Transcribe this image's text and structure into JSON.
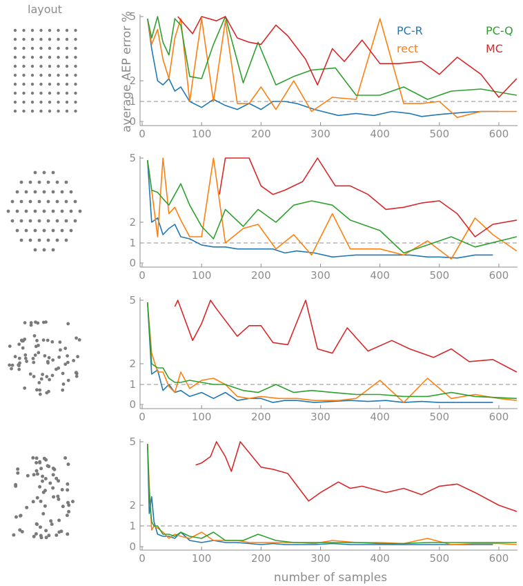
{
  "figure": {
    "layout_title": "layout",
    "ylabel": "average AEP error %",
    "xlabel": "number of samples"
  },
  "colors": {
    "PC-R": "#1f77b4",
    "rect": "#ff7f0e",
    "PC-Q": "#2ca02c",
    "MC": "#d62728",
    "reference": "#8c8c8c",
    "layout_dots": "#7a7a7a"
  },
  "legend": [
    {
      "name": "PC-R",
      "color": "#1f77b4"
    },
    {
      "name": "rect",
      "color": "#ff7f0e"
    },
    {
      "name": "PC-Q",
      "color": "#2ca02c"
    },
    {
      "name": "MC",
      "color": "#d62728"
    }
  ],
  "layouts": [
    "grid",
    "circular",
    "circular-irregular",
    "irregular"
  ],
  "chart_data": [
    {
      "type": "line",
      "x_ticks": [
        0,
        100,
        200,
        300,
        400,
        500,
        600
      ],
      "y_ticks": [
        0,
        1,
        2,
        5
      ],
      "xlim": [
        -10,
        630
      ],
      "ylim": [
        -0.2,
        5
      ],
      "reference_line": 1,
      "series": [
        {
          "name": "PC-R",
          "x": [
            9,
            16,
            26,
            35,
            45,
            55,
            65,
            80,
            100,
            120,
            140,
            160,
            180,
            200,
            220,
            240,
            260,
            290,
            330,
            360,
            390,
            420,
            450,
            470,
            500,
            540,
            570,
            600
          ],
          "y": [
            4.9,
            3.5,
            2.0,
            1.8,
            2.1,
            1.5,
            1.7,
            1.0,
            0.7,
            1.1,
            0.8,
            0.6,
            0.9,
            0.6,
            1.0,
            1.0,
            0.9,
            0.6,
            0.3,
            0.4,
            0.3,
            0.5,
            0.4,
            0.25,
            0.35,
            0.45,
            0.5,
            0.5
          ]
        },
        {
          "name": "rect",
          "x": [
            9,
            16,
            26,
            35,
            45,
            55,
            65,
            80,
            100,
            120,
            140,
            160,
            180,
            200,
            225,
            255,
            285,
            320,
            360,
            400,
            440,
            470,
            500,
            530,
            570,
            630
          ],
          "y": [
            4.9,
            3.7,
            4.4,
            3.0,
            2.1,
            4.0,
            4.9,
            1.0,
            4.9,
            1.0,
            4.8,
            0.9,
            0.9,
            1.7,
            0.6,
            2.0,
            0.5,
            1.2,
            1.1,
            4.9,
            0.9,
            0.9,
            1.0,
            0.2,
            0.5,
            0.5
          ]
        },
        {
          "name": "PC-Q",
          "x": [
            9,
            16,
            26,
            35,
            45,
            55,
            65,
            80,
            100,
            120,
            140,
            170,
            195,
            225,
            255,
            285,
            325,
            360,
            400,
            440,
            480,
            520,
            570,
            630
          ],
          "y": [
            4.9,
            4.0,
            5.0,
            3.8,
            3.2,
            4.9,
            4.6,
            2.2,
            2.1,
            3.7,
            5.0,
            1.9,
            3.8,
            1.8,
            2.2,
            2.5,
            2.6,
            1.3,
            1.3,
            1.7,
            1.1,
            1.5,
            1.6,
            1.3
          ]
        },
        {
          "name": "MC",
          "x": [
            60,
            85,
            100,
            125,
            140,
            160,
            180,
            200,
            225,
            245,
            275,
            295,
            320,
            340,
            370,
            400,
            430,
            470,
            500,
            530,
            570,
            600,
            630
          ],
          "y": [
            5.0,
            4.2,
            5.0,
            4.8,
            5.0,
            4.0,
            3.8,
            3.7,
            4.6,
            4.1,
            3.0,
            1.8,
            3.5,
            2.9,
            3.9,
            2.8,
            2.8,
            2.9,
            2.3,
            3.1,
            2.3,
            1.2,
            2.1
          ]
        }
      ]
    },
    {
      "type": "line",
      "x_ticks": [
        0,
        100,
        200,
        300,
        400,
        500,
        600
      ],
      "y_ticks": [
        0,
        1,
        2,
        5
      ],
      "xlim": [
        -10,
        630
      ],
      "ylim": [
        -0.2,
        5
      ],
      "reference_line": 1,
      "series": [
        {
          "name": "PC-R",
          "x": [
            9,
            16,
            26,
            35,
            45,
            55,
            65,
            80,
            100,
            120,
            140,
            160,
            180,
            200,
            220,
            240,
            260,
            290,
            320,
            360,
            390,
            420,
            450,
            480,
            500,
            530,
            560,
            590
          ],
          "y": [
            4.9,
            2.0,
            2.2,
            1.4,
            1.7,
            1.9,
            1.3,
            1.2,
            0.9,
            0.8,
            0.8,
            0.7,
            0.7,
            0.7,
            0.7,
            0.5,
            0.6,
            0.5,
            0.3,
            0.4,
            0.4,
            0.4,
            0.4,
            0.3,
            0.3,
            0.25,
            0.4,
            0.4
          ]
        },
        {
          "name": "rect",
          "x": [
            9,
            16,
            26,
            35,
            45,
            55,
            65,
            80,
            100,
            120,
            140,
            170,
            195,
            225,
            255,
            285,
            320,
            350,
            400,
            440,
            480,
            520,
            560,
            590,
            630
          ],
          "y": [
            4.9,
            3.5,
            1.3,
            5.0,
            2.4,
            2.7,
            2.1,
            1.3,
            1.3,
            5.0,
            1.0,
            1.7,
            1.9,
            0.7,
            1.4,
            0.4,
            2.4,
            0.7,
            0.7,
            0.4,
            1.1,
            0.2,
            2.2,
            1.4,
            0.6
          ]
        },
        {
          "name": "PC-Q",
          "x": [
            9,
            16,
            26,
            35,
            45,
            55,
            65,
            80,
            100,
            120,
            140,
            170,
            195,
            225,
            255,
            285,
            320,
            350,
            400,
            440,
            480,
            520,
            560,
            630
          ],
          "y": [
            4.9,
            3.5,
            3.4,
            3.1,
            2.8,
            3.3,
            3.8,
            2.8,
            1.8,
            1.2,
            2.6,
            1.8,
            2.6,
            2.0,
            2.8,
            3.0,
            2.8,
            2.1,
            1.6,
            0.5,
            0.9,
            1.3,
            0.8,
            1.3
          ]
        },
        {
          "name": "MC",
          "x": [
            130,
            140,
            160,
            180,
            200,
            220,
            240,
            270,
            295,
            325,
            350,
            380,
            410,
            440,
            470,
            500,
            530,
            560,
            590,
            630
          ],
          "y": [
            3.3,
            5.0,
            5.0,
            5.0,
            3.7,
            3.3,
            3.5,
            3.9,
            5.0,
            3.7,
            3.7,
            3.3,
            2.6,
            2.7,
            2.9,
            3.0,
            2.4,
            1.3,
            1.9,
            2.1
          ]
        }
      ]
    },
    {
      "type": "line",
      "x_ticks": [
        0,
        100,
        200,
        300,
        400,
        500,
        600
      ],
      "y_ticks": [
        0,
        1,
        2,
        5
      ],
      "xlim": [
        -10,
        630
      ],
      "ylim": [
        -0.2,
        5
      ],
      "reference_line": 1,
      "series": [
        {
          "name": "PC-R",
          "x": [
            9,
            16,
            26,
            35,
            45,
            55,
            65,
            80,
            100,
            120,
            140,
            160,
            180,
            200,
            220,
            240,
            260,
            290,
            320,
            350,
            380,
            410,
            440,
            470,
            500,
            530,
            560,
            590
          ],
          "y": [
            4.9,
            1.5,
            1.7,
            0.7,
            1.0,
            0.6,
            0.7,
            0.4,
            0.6,
            0.3,
            0.6,
            0.2,
            0.3,
            0.3,
            0.1,
            0.2,
            0.2,
            0.1,
            0.15,
            0.2,
            0.15,
            0.2,
            0.1,
            0.15,
            0.1,
            0.1,
            0.1,
            0.1
          ]
        },
        {
          "name": "rect",
          "x": [
            9,
            16,
            26,
            35,
            45,
            55,
            65,
            80,
            100,
            120,
            140,
            160,
            180,
            200,
            230,
            260,
            290,
            330,
            360,
            400,
            440,
            480,
            520,
            560,
            600,
            630
          ],
          "y": [
            4.9,
            2.5,
            1.6,
            1.6,
            0.9,
            0.6,
            1.6,
            0.8,
            1.2,
            1.3,
            1.0,
            0.4,
            0.3,
            0.4,
            0.3,
            0.3,
            0.2,
            0.2,
            0.3,
            1.2,
            0.1,
            1.3,
            0.3,
            0.5,
            0.3,
            0.2
          ]
        },
        {
          "name": "PC-Q",
          "x": [
            9,
            16,
            26,
            35,
            45,
            55,
            65,
            80,
            100,
            120,
            140,
            170,
            195,
            225,
            255,
            285,
            320,
            360,
            400,
            440,
            480,
            520,
            560,
            630
          ],
          "y": [
            4.9,
            2.0,
            1.8,
            1.8,
            1.3,
            1.1,
            1.1,
            1.2,
            1.1,
            1.0,
            1.0,
            0.7,
            0.6,
            1.0,
            0.6,
            0.7,
            0.6,
            0.5,
            0.5,
            0.4,
            0.4,
            0.6,
            0.4,
            0.3
          ]
        },
        {
          "name": "MC",
          "x": [
            55,
            60,
            85,
            100,
            115,
            125,
            160,
            180,
            200,
            220,
            245,
            275,
            295,
            320,
            345,
            380,
            420,
            450,
            490,
            520,
            550,
            590,
            630
          ],
          "y": [
            4.7,
            5.0,
            3.1,
            3.9,
            5.0,
            4.6,
            3.3,
            3.8,
            3.8,
            3.0,
            2.9,
            5.0,
            2.7,
            2.5,
            3.7,
            2.6,
            3.1,
            2.7,
            2.3,
            2.7,
            2.1,
            2.2,
            1.6
          ]
        }
      ]
    },
    {
      "type": "line",
      "x_ticks": [
        0,
        100,
        200,
        300,
        400,
        500,
        600
      ],
      "y_ticks": [
        0,
        1,
        2,
        5
      ],
      "xlim": [
        -10,
        630
      ],
      "ylim": [
        -0.2,
        5
      ],
      "reference_line": 1,
      "series": [
        {
          "name": "PC-R",
          "x": [
            9,
            12,
            16,
            20,
            26,
            35,
            45,
            55,
            65,
            80,
            100,
            120,
            140,
            160,
            180,
            200,
            220,
            240,
            260,
            290,
            320,
            350,
            380,
            410,
            440,
            470,
            500,
            530,
            560,
            590
          ],
          "y": [
            4.9,
            1.6,
            2.4,
            1.2,
            0.6,
            0.5,
            0.5,
            0.4,
            0.7,
            0.3,
            0.2,
            0.3,
            0.2,
            0.2,
            0.15,
            0.1,
            0.15,
            0.1,
            0.1,
            0.1,
            0.15,
            0.1,
            0.1,
            0.1,
            0.1,
            0.1,
            0.1,
            0.1,
            0.1,
            0.1
          ]
        },
        {
          "name": "rect",
          "x": [
            9,
            12,
            16,
            20,
            26,
            35,
            45,
            55,
            65,
            80,
            100,
            120,
            140,
            160,
            180,
            200,
            230,
            260,
            290,
            320,
            360,
            400,
            440,
            480,
            520,
            560,
            600,
            630
          ],
          "y": [
            4.9,
            3.0,
            0.8,
            1.0,
            0.9,
            0.7,
            0.4,
            0.6,
            0.5,
            0.4,
            0.7,
            0.3,
            0.3,
            0.3,
            0.2,
            0.2,
            0.2,
            0.2,
            0.15,
            0.3,
            0.2,
            0.2,
            0.15,
            0.4,
            0.1,
            0.15,
            0.15,
            0.1
          ]
        },
        {
          "name": "PC-Q",
          "x": [
            9,
            12,
            16,
            20,
            26,
            35,
            45,
            55,
            65,
            80,
            100,
            120,
            140,
            170,
            195,
            225,
            255,
            285,
            320,
            360,
            400,
            440,
            480,
            520,
            560,
            630
          ],
          "y": [
            4.9,
            2.5,
            1.2,
            1.0,
            1.0,
            0.6,
            0.6,
            0.5,
            0.7,
            0.5,
            0.4,
            0.7,
            0.3,
            0.3,
            0.6,
            0.3,
            0.2,
            0.2,
            0.2,
            0.2,
            0.15,
            0.15,
            0.2,
            0.2,
            0.2,
            0.2
          ]
        },
        {
          "name": "MC",
          "x": [
            90,
            100,
            115,
            125,
            140,
            150,
            165,
            200,
            220,
            245,
            280,
            300,
            330,
            350,
            370,
            410,
            440,
            470,
            500,
            530,
            560,
            600,
            630
          ],
          "y": [
            3.9,
            4.0,
            4.3,
            5.0,
            4.3,
            3.6,
            5.0,
            3.8,
            3.7,
            3.5,
            2.2,
            2.6,
            3.1,
            2.8,
            2.9,
            2.6,
            2.8,
            2.5,
            2.9,
            3.0,
            2.6,
            2.0,
            1.7
          ]
        }
      ]
    }
  ]
}
